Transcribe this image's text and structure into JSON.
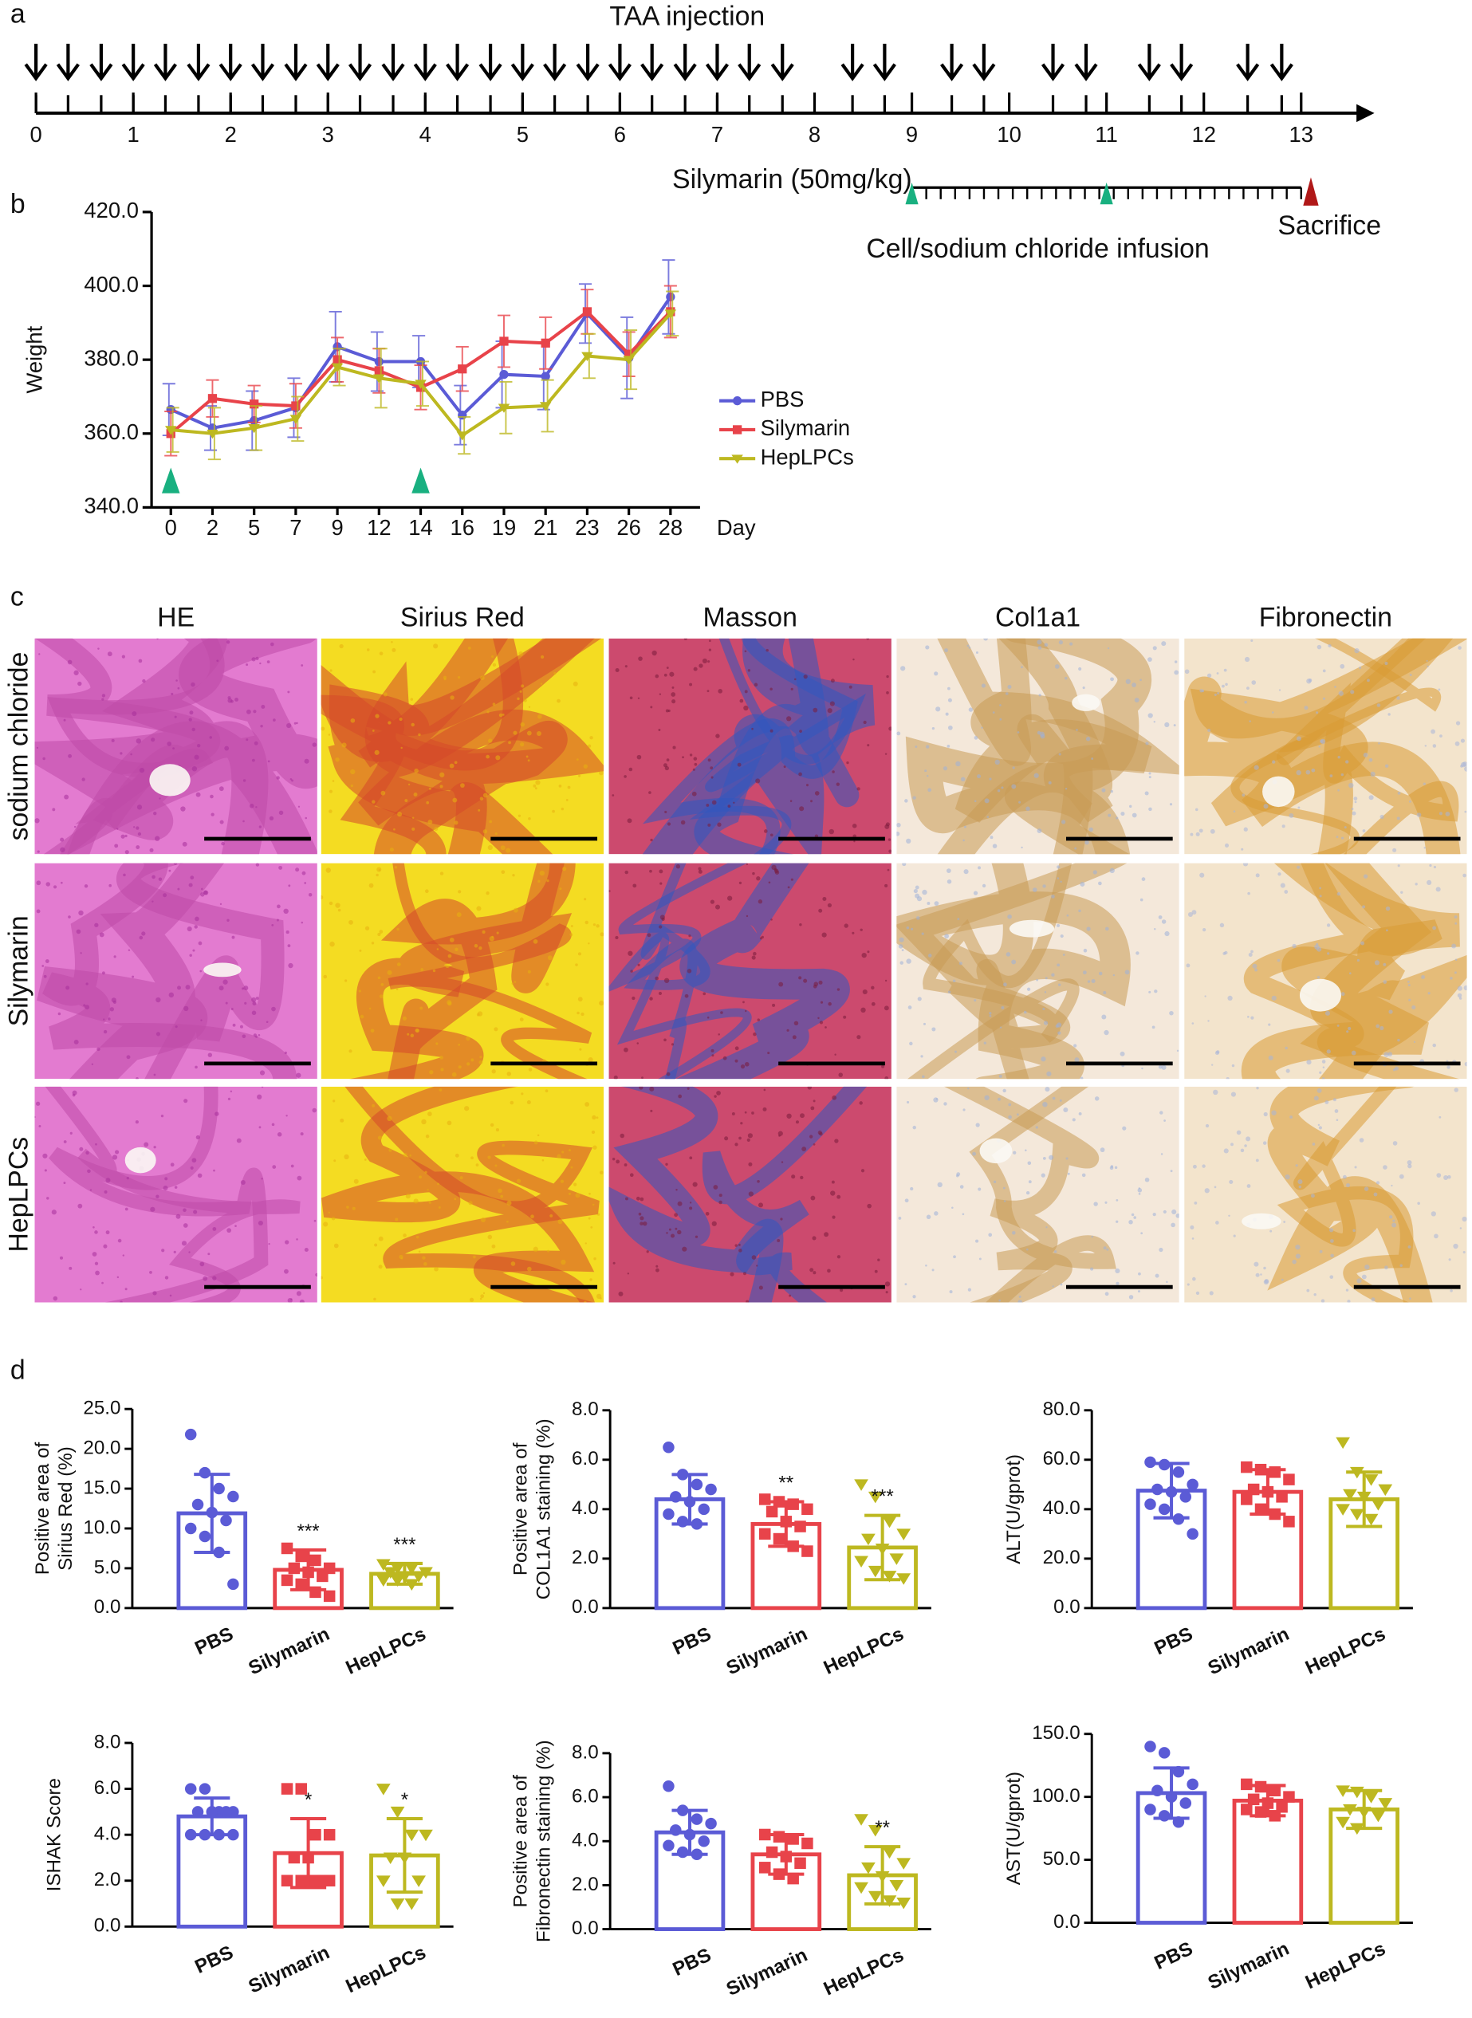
{
  "panel_labels": [
    "a",
    "b",
    "c",
    "d"
  ],
  "timeline": {
    "title": "TAA injection",
    "xlim": [
      0,
      13.7
    ],
    "xticks": [
      0,
      1,
      2,
      3,
      4,
      5,
      6,
      7,
      8,
      9,
      10,
      11,
      12,
      13
    ],
    "injections": [
      0,
      0.33,
      0.67,
      1,
      1.33,
      1.67,
      2,
      2.33,
      2.67,
      3,
      3.33,
      3.67,
      4,
      4.33,
      4.67,
      5,
      5.33,
      5.67,
      6,
      6.33,
      6.67,
      7,
      7.33,
      7.67,
      8.39,
      8.72,
      9.41,
      9.74,
      10.45,
      10.79,
      11.44,
      11.77,
      12.45,
      12.8
    ],
    "treatment": "Silymarin (50mg/kg)",
    "treatment_range": [
      9,
      13
    ],
    "infusion": "Cell/sodium chloride infusion",
    "infusion_times": [
      9,
      11
    ],
    "endpoint": "Sacrifice",
    "endpoint_time": 13.1
  },
  "histology": {
    "columns": [
      "HE",
      "Sirius Red",
      "Masson",
      "Col1a1",
      "Fibronectin"
    ],
    "rows": [
      "sodium chloride",
      "Silymarin",
      "HepLPCs"
    ]
  },
  "chart_data": [
    {
      "type": "line",
      "ylabel": "Weight",
      "xlabel": "Day",
      "categories": [
        "0",
        "2",
        "5",
        "7",
        "9",
        "12",
        "14",
        "16",
        "19",
        "21",
        "23",
        "26",
        "28"
      ],
      "ylim": [
        340,
        420
      ],
      "yticks": [
        {
          "value": 340,
          "label": "340.0"
        },
        {
          "value": 360,
          "label": "360.0"
        },
        {
          "value": 380,
          "label": "380.0"
        },
        {
          "value": 400,
          "label": "400.0"
        },
        {
          "value": 420,
          "label": "420.0"
        }
      ],
      "legend": "right",
      "series": [
        {
          "name": "PBS",
          "color": "#5b5bd6",
          "marker": "circle",
          "values": [
            366.5,
            361.5,
            363.5,
            367,
            383.5,
            379.5,
            379.5,
            365,
            376,
            375.5,
            392.5,
            380.5,
            397
          ],
          "errors": [
            7,
            6,
            8,
            8,
            9.5,
            8,
            7,
            8,
            9,
            9,
            8,
            11,
            10
          ]
        },
        {
          "name": "Silymarin",
          "color": "#e8434a",
          "marker": "square",
          "values": [
            360,
            369.5,
            368,
            367.5,
            380,
            377,
            372.5,
            377.5,
            385,
            384.5,
            393,
            381.5,
            393
          ],
          "errors": [
            6,
            5,
            5,
            6,
            6,
            6,
            6,
            6,
            7,
            7,
            6,
            6,
            7
          ]
        },
        {
          "name": "HepLPCs",
          "color": "#bdb820",
          "marker": "triangle",
          "values": [
            361,
            360,
            361.5,
            364,
            378,
            375,
            373.5,
            359.5,
            367,
            367.5,
            381,
            380,
            392.5
          ],
          "errors": [
            6,
            7,
            6,
            6,
            5,
            8,
            6,
            5,
            7,
            7,
            6,
            8,
            6
          ]
        }
      ]
    },
    {
      "type": "bar",
      "ylabel": [
        "Positive area of",
        "Sirius Red (%)"
      ],
      "categories": [
        "PBS",
        "Silymarin",
        "HepLPCs"
      ],
      "colors": [
        "#5b5bd6",
        "#e8434a",
        "#bdb820"
      ],
      "values": [
        11.9,
        4.8,
        4.3
      ],
      "errors": [
        4.9,
        2.5,
        1.3
      ],
      "points": [
        [
          21.8,
          17,
          15,
          14,
          13,
          12,
          11,
          10,
          9,
          7,
          3
        ],
        [
          7.5,
          6.5,
          6,
          5,
          5,
          4.5,
          4,
          3.5,
          3,
          2,
          1.5
        ],
        [
          5.5,
          5,
          5,
          4.5,
          4.5,
          4,
          4,
          3.5,
          3.5,
          3
        ]
      ],
      "significance": [
        null,
        "***",
        "***"
      ],
      "ylim": [
        0,
        25
      ],
      "yticks": [
        {
          "value": 0,
          "label": "0.0"
        },
        {
          "value": 5,
          "label": "5.0"
        },
        {
          "value": 10,
          "label": "10.0"
        },
        {
          "value": 15,
          "label": "15.0"
        },
        {
          "value": 20,
          "label": "20.0"
        },
        {
          "value": 25,
          "label": "25.0"
        }
      ]
    },
    {
      "type": "bar",
      "ylabel": [
        "Positive area of",
        "COL1A1 staining (%)"
      ],
      "categories": [
        "PBS",
        "Silymarin",
        "HepLPCs"
      ],
      "colors": [
        "#5b5bd6",
        "#e8434a",
        "#bdb820"
      ],
      "values": [
        4.4,
        3.4,
        2.45
      ],
      "errors": [
        1.0,
        0.9,
        1.3
      ],
      "points": [
        [
          6.5,
          5.4,
          5.0,
          4.8,
          4.5,
          4.3,
          4.0,
          3.8,
          3.5,
          3.4
        ],
        [
          4.4,
          4.3,
          4.2,
          4.0,
          3.9,
          3.5,
          3.3,
          3.0,
          2.8,
          2.5,
          2.3
        ],
        [
          5.0,
          4.5,
          3.5,
          3.0,
          2.8,
          2.4,
          2.0,
          1.9,
          1.5,
          1.3,
          1.2
        ]
      ],
      "significance": [
        null,
        "**",
        "***"
      ],
      "ylim": [
        0,
        8
      ],
      "yticks": [
        {
          "value": 0,
          "label": "0.0"
        },
        {
          "value": 2,
          "label": "2.0"
        },
        {
          "value": 4,
          "label": "4.0"
        },
        {
          "value": 6,
          "label": "6.0"
        },
        {
          "value": 8,
          "label": "8.0"
        }
      ]
    },
    {
      "type": "bar",
      "ylabel": [
        "ALT(U/gprot)"
      ],
      "categories": [
        "PBS",
        "Silymarin",
        "HepLPCs"
      ],
      "colors": [
        "#5b5bd6",
        "#e8434a",
        "#bdb820"
      ],
      "values": [
        47.5,
        47,
        44
      ],
      "errors": [
        11,
        9,
        11
      ],
      "points": [
        [
          59,
          58,
          55,
          50,
          48,
          47,
          45,
          42,
          40,
          36,
          30
        ],
        [
          57,
          56,
          55,
          52,
          48,
          47,
          45,
          44,
          40,
          38,
          35
        ],
        [
          67,
          55,
          52,
          48,
          46,
          45,
          42,
          40,
          38,
          36
        ]
      ],
      "significance": [
        null,
        null,
        null
      ],
      "ylim": [
        0,
        80
      ],
      "yticks": [
        {
          "value": 0,
          "label": "0.0"
        },
        {
          "value": 20,
          "label": "20.0"
        },
        {
          "value": 40,
          "label": "40.0"
        },
        {
          "value": 60,
          "label": "60.0"
        },
        {
          "value": 80,
          "label": "80.0"
        }
      ]
    },
    {
      "type": "bar",
      "ylabel": [
        "ISHAK Score"
      ],
      "categories": [
        "PBS",
        "Silymarin",
        "HepLPCs"
      ],
      "colors": [
        "#5b5bd6",
        "#e8434a",
        "#bdb820"
      ],
      "values": [
        4.8,
        3.2,
        3.1
      ],
      "errors": [
        0.8,
        1.5,
        1.6
      ],
      "points": [
        [
          6,
          6,
          5,
          5,
          5,
          5,
          5,
          4,
          4,
          4,
          4
        ],
        [
          6,
          6,
          4,
          4,
          3,
          3,
          2,
          2,
          2,
          2,
          2
        ],
        [
          6,
          5,
          4,
          4,
          3,
          3,
          2,
          2,
          1,
          1
        ]
      ],
      "significance": [
        null,
        "*",
        "*"
      ],
      "ylim": [
        0,
        8
      ],
      "yticks": [
        {
          "value": 0,
          "label": "0.0"
        },
        {
          "value": 2,
          "label": "2.0"
        },
        {
          "value": 4,
          "label": "4.0"
        },
        {
          "value": 6,
          "label": "6.0"
        },
        {
          "value": 8,
          "label": "8.0"
        }
      ]
    },
    {
      "type": "bar",
      "ylabel": [
        "Positive area of",
        "Fibronectin staining (%)"
      ],
      "categories": [
        "PBS",
        "Silymarin",
        "HepLPCs"
      ],
      "colors": [
        "#5b5bd6",
        "#e8434a",
        "#bdb820"
      ],
      "values": [
        4.4,
        3.4,
        2.45
      ],
      "errors": [
        1.0,
        0.9,
        1.3
      ],
      "points": [
        [
          6.5,
          5.4,
          5.0,
          4.8,
          4.5,
          4.3,
          4.0,
          3.8,
          3.5,
          3.4
        ],
        [
          4.3,
          4.2,
          4.1,
          3.9,
          3.5,
          3.3,
          3.0,
          2.8,
          2.5,
          2.3
        ],
        [
          5.0,
          4.5,
          3.5,
          3.0,
          2.8,
          2.4,
          2.0,
          1.9,
          1.5,
          1.3,
          1.2
        ]
      ],
      "significance": [
        null,
        null,
        "**"
      ],
      "ylim": [
        0,
        8
      ],
      "yticks": [
        {
          "value": 0,
          "label": "0.0"
        },
        {
          "value": 2,
          "label": "2.0"
        },
        {
          "value": 4,
          "label": "4.0"
        },
        {
          "value": 6,
          "label": "6.0"
        },
        {
          "value": 8,
          "label": "8.0"
        }
      ]
    },
    {
      "type": "bar",
      "ylabel": [
        "AST(U/gprot)"
      ],
      "categories": [
        "PBS",
        "Silymarin",
        "HepLPCs"
      ],
      "colors": [
        "#5b5bd6",
        "#e8434a",
        "#bdb820"
      ],
      "values": [
        103,
        97,
        90
      ],
      "errors": [
        20,
        12,
        15
      ],
      "points": [
        [
          140,
          135,
          120,
          110,
          105,
          100,
          95,
          90,
          85,
          80
        ],
        [
          110,
          108,
          105,
          100,
          98,
          95,
          92,
          90,
          88,
          85
        ],
        [
          105,
          104,
          100,
          95,
          90,
          88,
          85,
          80,
          75
        ]
      ],
      "significance": [
        null,
        null,
        null
      ],
      "ylim": [
        0,
        150
      ],
      "yticks": [
        {
          "value": 0,
          "label": "0.0"
        },
        {
          "value": 50,
          "label": "50.0"
        },
        {
          "value": 100,
          "label": "100.0"
        },
        {
          "value": 150,
          "label": "150.0"
        }
      ]
    }
  ]
}
